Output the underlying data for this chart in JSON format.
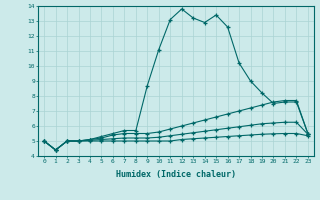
{
  "xlabel": "Humidex (Indice chaleur)",
  "ylabel": "",
  "xlim": [
    -0.5,
    23.5
  ],
  "ylim": [
    4,
    14
  ],
  "xticks": [
    0,
    1,
    2,
    3,
    4,
    5,
    6,
    7,
    8,
    9,
    10,
    11,
    12,
    13,
    14,
    15,
    16,
    17,
    18,
    19,
    20,
    21,
    22,
    23
  ],
  "yticks": [
    4,
    5,
    6,
    7,
    8,
    9,
    10,
    11,
    12,
    13,
    14
  ],
  "bg_color": "#cceaea",
  "grid_color": "#aad4d4",
  "line_color": "#006868",
  "line1_x": [
    0,
    1,
    2,
    3,
    4,
    5,
    6,
    7,
    8,
    9,
    10,
    11,
    12,
    13,
    14,
    15,
    16,
    17,
    18,
    19,
    20,
    21,
    22,
    23
  ],
  "line1_y": [
    5.0,
    4.4,
    5.0,
    5.0,
    5.1,
    5.3,
    5.5,
    5.7,
    5.7,
    8.7,
    11.1,
    13.1,
    13.8,
    13.2,
    12.9,
    13.4,
    12.6,
    10.2,
    9.0,
    8.2,
    7.5,
    7.6,
    7.6,
    5.5
  ],
  "line2_x": [
    0,
    1,
    2,
    3,
    4,
    5,
    6,
    7,
    8,
    9,
    10,
    11,
    12,
    13,
    14,
    15,
    16,
    17,
    18,
    19,
    20,
    21,
    22,
    23
  ],
  "line2_y": [
    5.0,
    4.4,
    5.0,
    5.0,
    5.1,
    5.2,
    5.4,
    5.5,
    5.5,
    5.5,
    5.6,
    5.8,
    6.0,
    6.2,
    6.4,
    6.6,
    6.8,
    7.0,
    7.2,
    7.4,
    7.6,
    7.7,
    7.7,
    5.5
  ],
  "line3_x": [
    0,
    1,
    2,
    3,
    4,
    5,
    6,
    7,
    8,
    9,
    10,
    11,
    12,
    13,
    14,
    15,
    16,
    17,
    18,
    19,
    20,
    21,
    22,
    23
  ],
  "line3_y": [
    5.0,
    4.4,
    5.0,
    5.0,
    5.05,
    5.1,
    5.15,
    5.2,
    5.2,
    5.2,
    5.25,
    5.35,
    5.45,
    5.55,
    5.65,
    5.75,
    5.85,
    5.95,
    6.05,
    6.15,
    6.2,
    6.25,
    6.25,
    5.45
  ],
  "line4_x": [
    0,
    1,
    2,
    3,
    4,
    5,
    6,
    7,
    8,
    9,
    10,
    11,
    12,
    13,
    14,
    15,
    16,
    17,
    18,
    19,
    20,
    21,
    22,
    23
  ],
  "line4_y": [
    5.0,
    4.4,
    5.0,
    5.0,
    5.0,
    5.0,
    5.0,
    5.0,
    5.0,
    5.0,
    5.0,
    5.0,
    5.1,
    5.15,
    5.2,
    5.25,
    5.3,
    5.35,
    5.4,
    5.45,
    5.48,
    5.5,
    5.5,
    5.35
  ]
}
